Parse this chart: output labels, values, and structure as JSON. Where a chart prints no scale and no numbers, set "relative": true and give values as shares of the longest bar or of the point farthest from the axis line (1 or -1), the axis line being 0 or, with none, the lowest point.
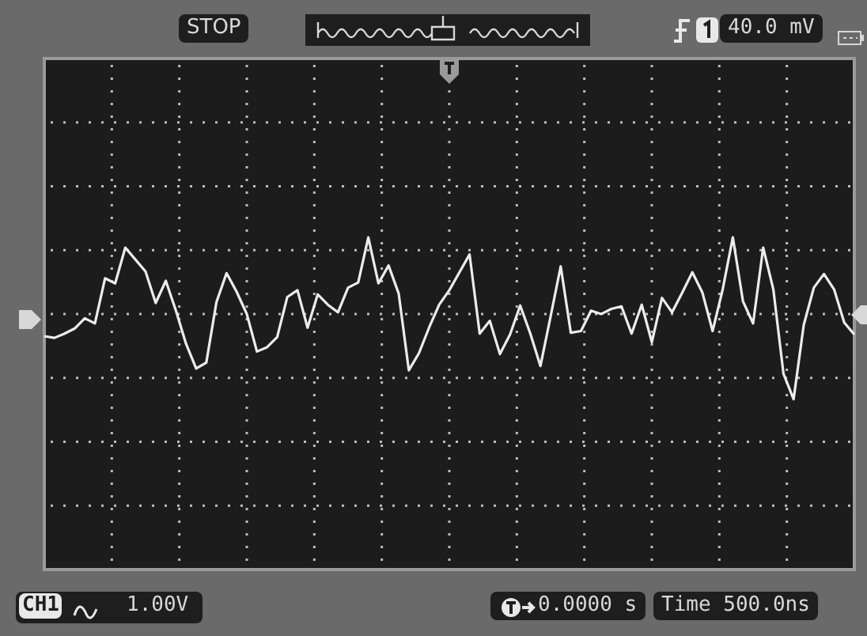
{
  "chart_data": {
    "type": "line",
    "relative": true,
    "categories": [
      null,
      null,
      null,
      null,
      null,
      null,
      null,
      null,
      null,
      null,
      null,
      null,
      null,
      null,
      null,
      null,
      null,
      null,
      null,
      null,
      null,
      null,
      null,
      null,
      null,
      null,
      null,
      null,
      null,
      null,
      null,
      null,
      null,
      null,
      null,
      null,
      null,
      null,
      null,
      null,
      null,
      null,
      null,
      null,
      null,
      null,
      null,
      null,
      null,
      null,
      null,
      null,
      null,
      null,
      null,
      null,
      null,
      null,
      null,
      null,
      null,
      null,
      null,
      null,
      null,
      null,
      null,
      null,
      null,
      null,
      null,
      null,
      null,
      null,
      null,
      null,
      null,
      null,
      null,
      null,
      null
    ],
    "series": [
      {
        "color": "#ececec",
        "values": [
          -0.26,
          -0.28,
          -0.23,
          -0.17,
          -0.05,
          -0.11,
          0.42,
          0.36,
          0.78,
          0.64,
          0.5,
          0.13,
          0.39,
          0.04,
          -0.35,
          -0.64,
          -0.57,
          0.14,
          0.48,
          0.26,
          0,
          -0.44,
          -0.39,
          -0.27,
          0.2,
          0.28,
          -0.16,
          0.23,
          0.11,
          0.02,
          0.31,
          0.37,
          0.9,
          0.36,
          0.57,
          0.24,
          -0.66,
          -0.46,
          -0.16,
          0.11,
          0.28,
          0.49,
          0.7,
          -0.23,
          -0.08,
          -0.47,
          -0.24,
          0.1,
          -0.23,
          -0.61,
          -0.03,
          0.56,
          -0.22,
          -0.2,
          0.04,
          0,
          0.06,
          0.09,
          -0.23,
          0.11,
          -0.33,
          0.19,
          0.02,
          0.25,
          0.49,
          0.25,
          -0.2,
          0.29,
          0.9,
          0.15,
          -0.11,
          0.78,
          0.29,
          -0.7,
          -1,
          -0.13,
          0.31,
          0.47,
          0.29,
          -0.1,
          -0.24
        ]
      }
    ],
    "grid": true,
    "legend": false,
    "marker": "none",
    "line_style": "solid",
    "tick_labels": false,
    "annotations": [
      "STOP",
      "40.0 mV",
      "CH1",
      "1.00V",
      "0.0000 s",
      "Time 500.0ns"
    ]
  }
}
